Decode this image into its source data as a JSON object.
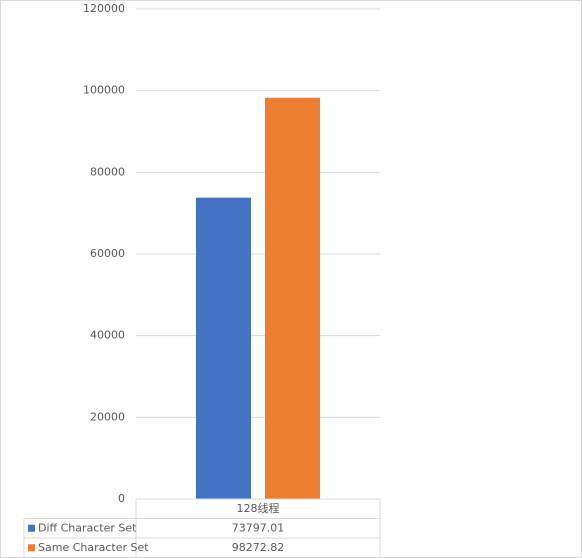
{
  "chart_data": {
    "type": "bar",
    "categories": [
      "128线程"
    ],
    "series": [
      {
        "name": "Diff Character Set",
        "color": "#4472c4",
        "values": [
          73797.01
        ]
      },
      {
        "name": "Same Character Set",
        "color": "#ed7d31",
        "values": [
          98272.82
        ]
      }
    ],
    "ylim": [
      0,
      120000
    ],
    "yticks": [
      0,
      20000,
      40000,
      60000,
      80000,
      100000,
      120000
    ],
    "grid": true,
    "data_table": true
  }
}
